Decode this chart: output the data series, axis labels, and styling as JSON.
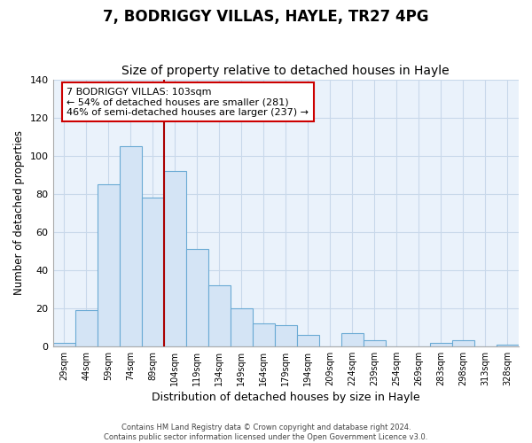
{
  "title": "7, BODRIGGY VILLAS, HAYLE, TR27 4PG",
  "subtitle": "Size of property relative to detached houses in Hayle",
  "xlabel": "Distribution of detached houses by size in Hayle",
  "ylabel": "Number of detached properties",
  "bar_labels": [
    "29sqm",
    "44sqm",
    "59sqm",
    "74sqm",
    "89sqm",
    "104sqm",
    "119sqm",
    "134sqm",
    "149sqm",
    "164sqm",
    "179sqm",
    "194sqm",
    "209sqm",
    "224sqm",
    "239sqm",
    "254sqm",
    "269sqm",
    "283sqm",
    "298sqm",
    "313sqm",
    "328sqm"
  ],
  "bar_values": [
    2,
    19,
    85,
    105,
    78,
    92,
    51,
    32,
    20,
    12,
    11,
    6,
    0,
    7,
    3,
    0,
    0,
    2,
    3,
    0,
    1
  ],
  "bar_fill_color": "#d4e4f5",
  "bar_edge_color": "#6aaad4",
  "highlight_line_color": "#aa0000",
  "highlight_index": 5,
  "ylim": [
    0,
    140
  ],
  "yticks": [
    0,
    20,
    40,
    60,
    80,
    100,
    120,
    140
  ],
  "annotation_title": "7 BODRIGGY VILLAS: 103sqm",
  "annotation_line1": "← 54% of detached houses are smaller (281)",
  "annotation_line2": "46% of semi-detached houses are larger (237) →",
  "annotation_box_color": "#ffffff",
  "annotation_box_edge": "#cc0000",
  "footer1": "Contains HM Land Registry data © Crown copyright and database right 2024.",
  "footer2": "Contains public sector information licensed under the Open Government Licence v3.0.",
  "plot_bg_color": "#eaf2fb",
  "fig_bg_color": "#ffffff",
  "grid_color": "#c8d8ea",
  "title_fontsize": 12,
  "subtitle_fontsize": 10
}
